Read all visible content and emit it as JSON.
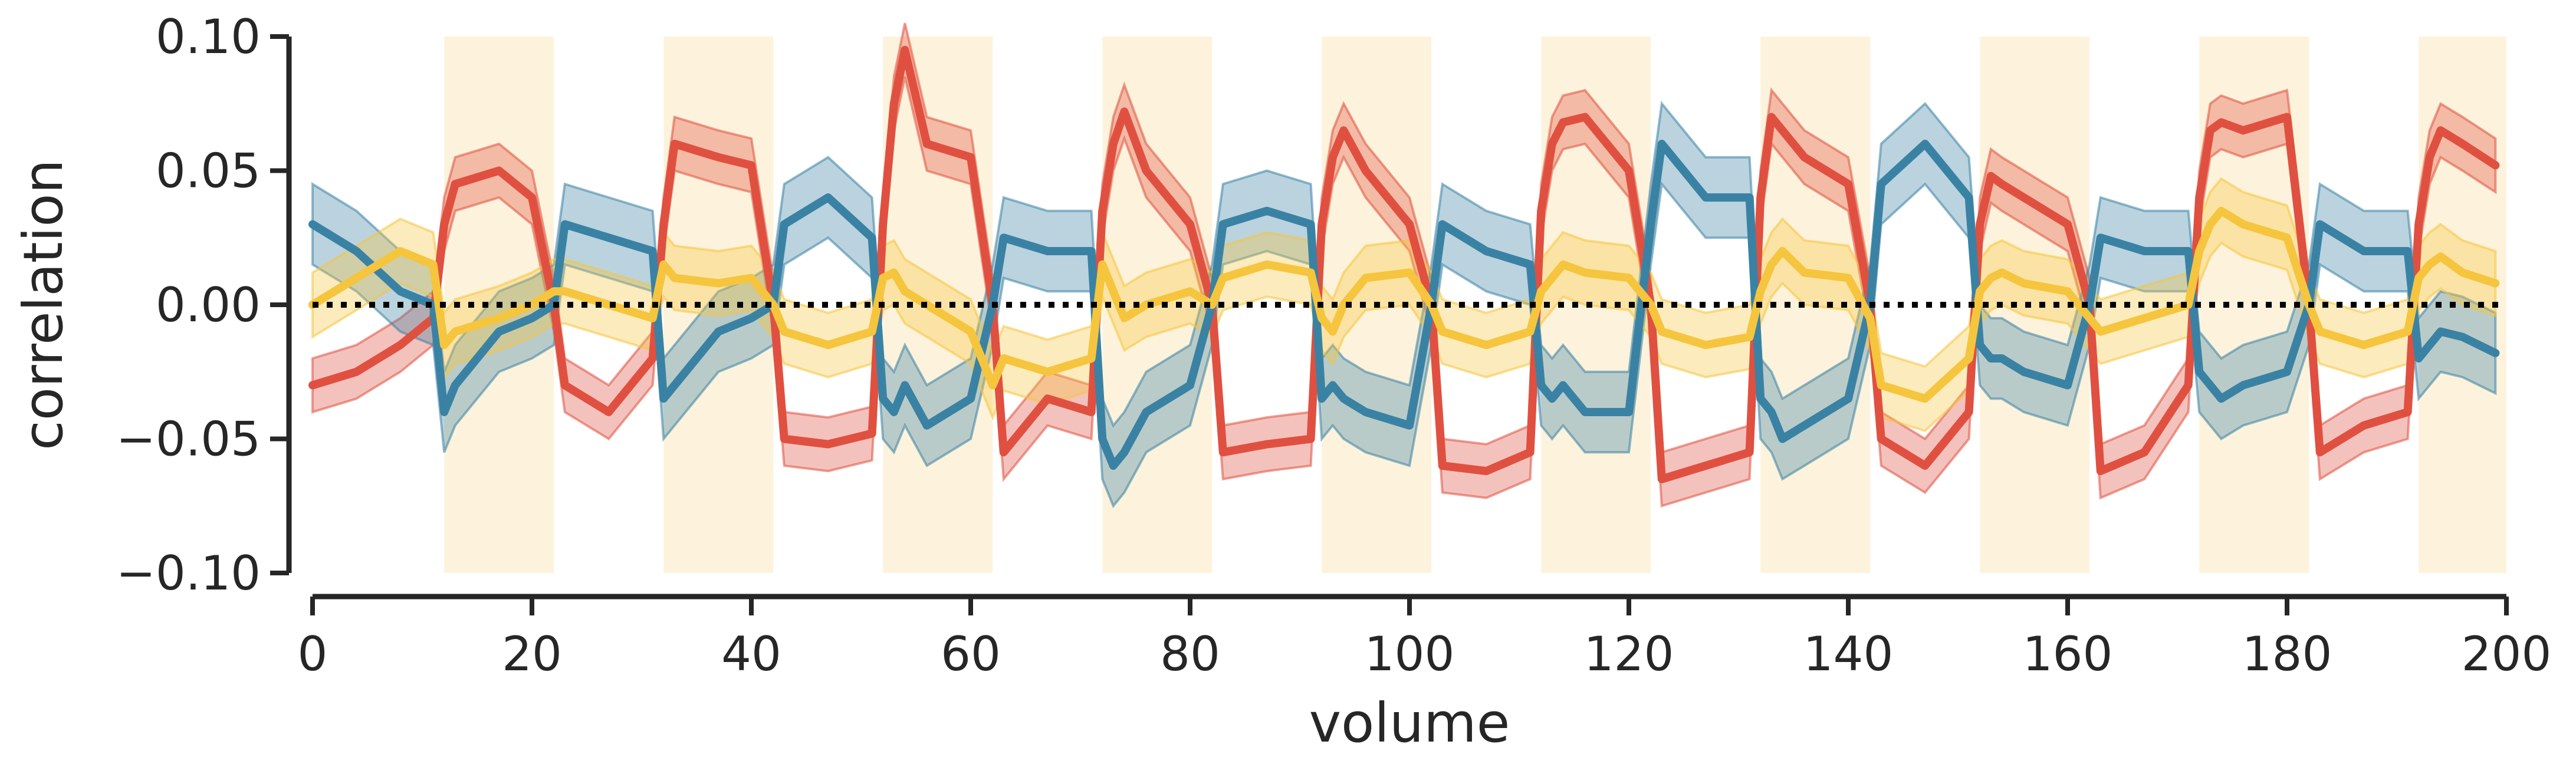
{
  "chart_data": {
    "type": "line",
    "title": "",
    "xlabel": "volume",
    "ylabel": "correlation",
    "xlim": [
      0,
      200
    ],
    "ylim": [
      -0.1,
      0.1
    ],
    "xticks": [
      0,
      20,
      40,
      60,
      80,
      100,
      120,
      140,
      160,
      180,
      200
    ],
    "xtick_labels": [
      "0",
      "20",
      "40",
      "60",
      "80",
      "100",
      "120",
      "140",
      "160",
      "180",
      "200"
    ],
    "yticks": [
      -0.1,
      -0.05,
      0.0,
      0.05,
      0.1
    ],
    "ytick_labels": [
      "−0.10",
      "−0.05",
      "0.00",
      "0.05",
      "0.10"
    ],
    "grid": false,
    "legend": "none",
    "reference_line": {
      "y": 0.0,
      "style": "dotted",
      "color": "#000000"
    },
    "shaded_blocks": [
      [
        12,
        22
      ],
      [
        32,
        42
      ],
      [
        52,
        62
      ],
      [
        72,
        82
      ],
      [
        92,
        102
      ],
      [
        112,
        122
      ],
      [
        132,
        142
      ],
      [
        152,
        162
      ],
      [
        172,
        182
      ],
      [
        192,
        200
      ]
    ],
    "shaded_color": "#fdf3dc",
    "x": [
      0,
      4,
      8,
      11,
      12,
      13,
      17,
      20,
      22,
      23,
      27,
      31,
      32,
      33,
      37,
      40,
      42,
      43,
      47,
      51,
      52,
      53,
      54,
      56,
      60,
      62,
      63,
      67,
      71,
      72,
      73,
      74,
      76,
      80,
      82,
      83,
      87,
      91,
      92,
      93,
      94,
      96,
      100,
      102,
      103,
      107,
      111,
      112,
      113,
      114,
      116,
      120,
      122,
      123,
      127,
      131,
      132,
      133,
      134,
      136,
      140,
      142,
      143,
      147,
      151,
      152,
      153,
      154,
      156,
      160,
      162,
      163,
      167,
      171,
      172,
      173,
      174,
      176,
      180,
      182,
      183,
      187,
      191,
      192,
      193,
      194,
      196,
      199
    ],
    "series": [
      {
        "color": "#e05040",
        "values": [
          -0.03,
          -0.025,
          -0.015,
          -0.005,
          0.03,
          0.045,
          0.05,
          0.04,
          0.0,
          -0.03,
          -0.04,
          -0.02,
          0.03,
          0.06,
          0.055,
          0.052,
          0.0,
          -0.05,
          -0.052,
          -0.048,
          0.03,
          0.075,
          0.095,
          0.06,
          0.055,
          0.0,
          -0.055,
          -0.035,
          -0.04,
          0.035,
          0.06,
          0.072,
          0.05,
          0.03,
          0.0,
          -0.055,
          -0.052,
          -0.05,
          0.03,
          0.055,
          0.065,
          0.05,
          0.03,
          0.0,
          -0.06,
          -0.062,
          -0.055,
          0.035,
          0.06,
          0.068,
          0.07,
          0.05,
          0.0,
          -0.065,
          -0.06,
          -0.055,
          0.04,
          0.07,
          0.065,
          0.055,
          0.045,
          0.0,
          -0.05,
          -0.06,
          -0.04,
          0.03,
          0.048,
          0.045,
          0.04,
          0.03,
          0.0,
          -0.062,
          -0.055,
          -0.03,
          0.04,
          0.065,
          0.068,
          0.065,
          0.07,
          0.0,
          -0.055,
          -0.045,
          -0.04,
          0.03,
          0.055,
          0.065,
          0.06,
          0.052
        ],
        "ci": 0.01
      },
      {
        "color": "#3a82a4",
        "values": [
          0.03,
          0.02,
          0.005,
          0.0,
          -0.04,
          -0.03,
          -0.01,
          -0.005,
          0.0,
          0.03,
          0.025,
          0.02,
          -0.035,
          -0.03,
          -0.01,
          -0.005,
          0.0,
          0.03,
          0.04,
          0.025,
          -0.035,
          -0.04,
          -0.03,
          -0.045,
          -0.035,
          0.0,
          0.025,
          0.02,
          0.02,
          -0.05,
          -0.06,
          -0.055,
          -0.04,
          -0.03,
          0.0,
          0.03,
          0.035,
          0.03,
          -0.035,
          -0.03,
          -0.035,
          -0.04,
          -0.045,
          0.0,
          0.03,
          0.02,
          0.015,
          -0.03,
          -0.035,
          -0.03,
          -0.04,
          -0.04,
          0.03,
          0.06,
          0.04,
          0.04,
          -0.035,
          -0.04,
          -0.05,
          -0.045,
          -0.035,
          0.0,
          0.045,
          0.06,
          0.04,
          -0.015,
          -0.02,
          -0.02,
          -0.025,
          -0.03,
          0.0,
          0.025,
          0.02,
          0.02,
          -0.025,
          -0.03,
          -0.035,
          -0.03,
          -0.025,
          0.0,
          0.03,
          0.02,
          0.02,
          -0.02,
          -0.015,
          -0.01,
          -0.012,
          -0.018
        ],
        "ci": 0.015
      },
      {
        "color": "#f6c53e",
        "values": [
          0.0,
          0.01,
          0.02,
          0.015,
          -0.015,
          -0.01,
          -0.005,
          0.0,
          0.005,
          0.005,
          0.0,
          -0.005,
          0.015,
          0.01,
          0.008,
          0.01,
          0.0,
          -0.01,
          -0.015,
          -0.01,
          0.01,
          0.012,
          0.005,
          0.0,
          -0.01,
          -0.03,
          -0.02,
          -0.025,
          -0.02,
          0.015,
          0.005,
          -0.005,
          0.0,
          0.005,
          0.0,
          0.01,
          0.015,
          0.012,
          -0.005,
          -0.01,
          0.0,
          0.01,
          0.012,
          0.0,
          -0.01,
          -0.015,
          -0.01,
          0.005,
          0.01,
          0.015,
          0.012,
          0.01,
          0.0,
          -0.01,
          -0.015,
          -0.012,
          0.005,
          0.015,
          0.02,
          0.012,
          0.01,
          -0.005,
          -0.03,
          -0.035,
          -0.02,
          0.005,
          0.01,
          0.012,
          0.008,
          0.005,
          -0.005,
          -0.01,
          -0.005,
          0.0,
          0.02,
          0.03,
          0.035,
          0.03,
          0.025,
          0.0,
          -0.01,
          -0.015,
          -0.01,
          0.01,
          0.015,
          0.018,
          0.012,
          0.008
        ],
        "ci": 0.012
      }
    ]
  }
}
